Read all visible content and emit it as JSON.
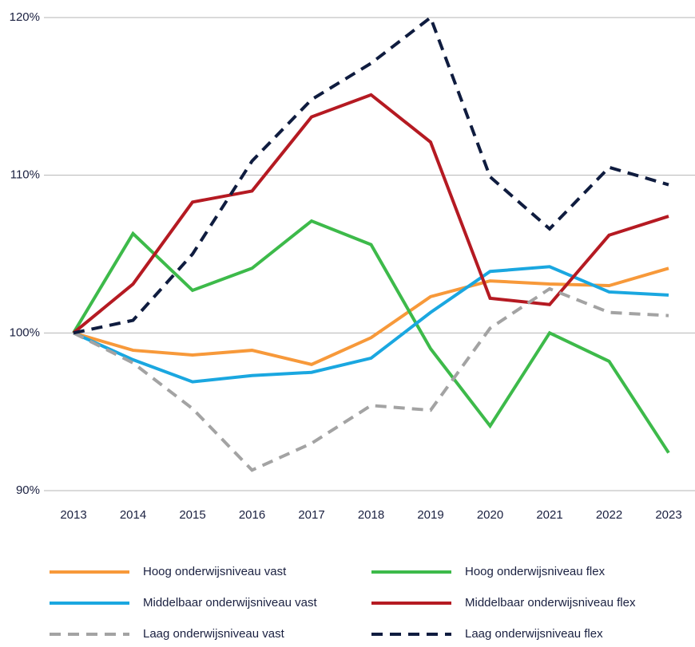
{
  "chart_data": {
    "type": "line",
    "categories": [
      "2013",
      "2014",
      "2015",
      "2016",
      "2017",
      "2018",
      "2019",
      "2020",
      "2021",
      "2022",
      "2023"
    ],
    "ylim": [
      90,
      120
    ],
    "yticks": [
      {
        "value": 90,
        "label": "90%"
      },
      {
        "value": 100,
        "label": "100%"
      },
      {
        "value": 110,
        "label": "110%"
      },
      {
        "value": 120,
        "label": "120%"
      }
    ],
    "grid": true,
    "legend": "bottom",
    "series": [
      {
        "name": "Hoog onderwijsniveau vast",
        "color": "#f7993a",
        "dashed": false,
        "values": [
          100,
          98.9,
          98.6,
          98.9,
          98.0,
          99.7,
          102.3,
          103.3,
          103.1,
          103.0,
          104.1
        ]
      },
      {
        "name": "Hoog onderwijsniveau flex",
        "color": "#3dba4a",
        "dashed": false,
        "values": [
          100,
          106.3,
          102.7,
          104.1,
          107.1,
          105.6,
          99.0,
          94.1,
          100.0,
          98.2,
          92.4
        ]
      },
      {
        "name": "Middelbaar onderwijsniveau vast",
        "color": "#1aa7e0",
        "dashed": false,
        "values": [
          100,
          98.3,
          96.9,
          97.3,
          97.5,
          98.4,
          101.3,
          103.9,
          104.2,
          102.6,
          102.4
        ]
      },
      {
        "name": "Middelbaar onderwijsniveau flex",
        "color": "#b51a22",
        "dashed": false,
        "values": [
          100,
          103.1,
          108.3,
          109.0,
          113.7,
          115.1,
          112.1,
          102.2,
          101.8,
          106.2,
          107.4
        ]
      },
      {
        "name": "Laag onderwijsniveau vast",
        "color": "#a3a3a3",
        "dashed": true,
        "values": [
          100,
          98.1,
          95.2,
          91.3,
          93.0,
          95.4,
          95.1,
          100.3,
          102.8,
          101.3,
          101.1
        ]
      },
      {
        "name": "Laag onderwijsniveau flex",
        "color": "#0f1c3f",
        "dashed": true,
        "values": [
          100,
          100.8,
          105.0,
          110.9,
          114.8,
          117.1,
          120.0,
          109.9,
          106.6,
          110.5,
          109.4
        ]
      }
    ]
  }
}
